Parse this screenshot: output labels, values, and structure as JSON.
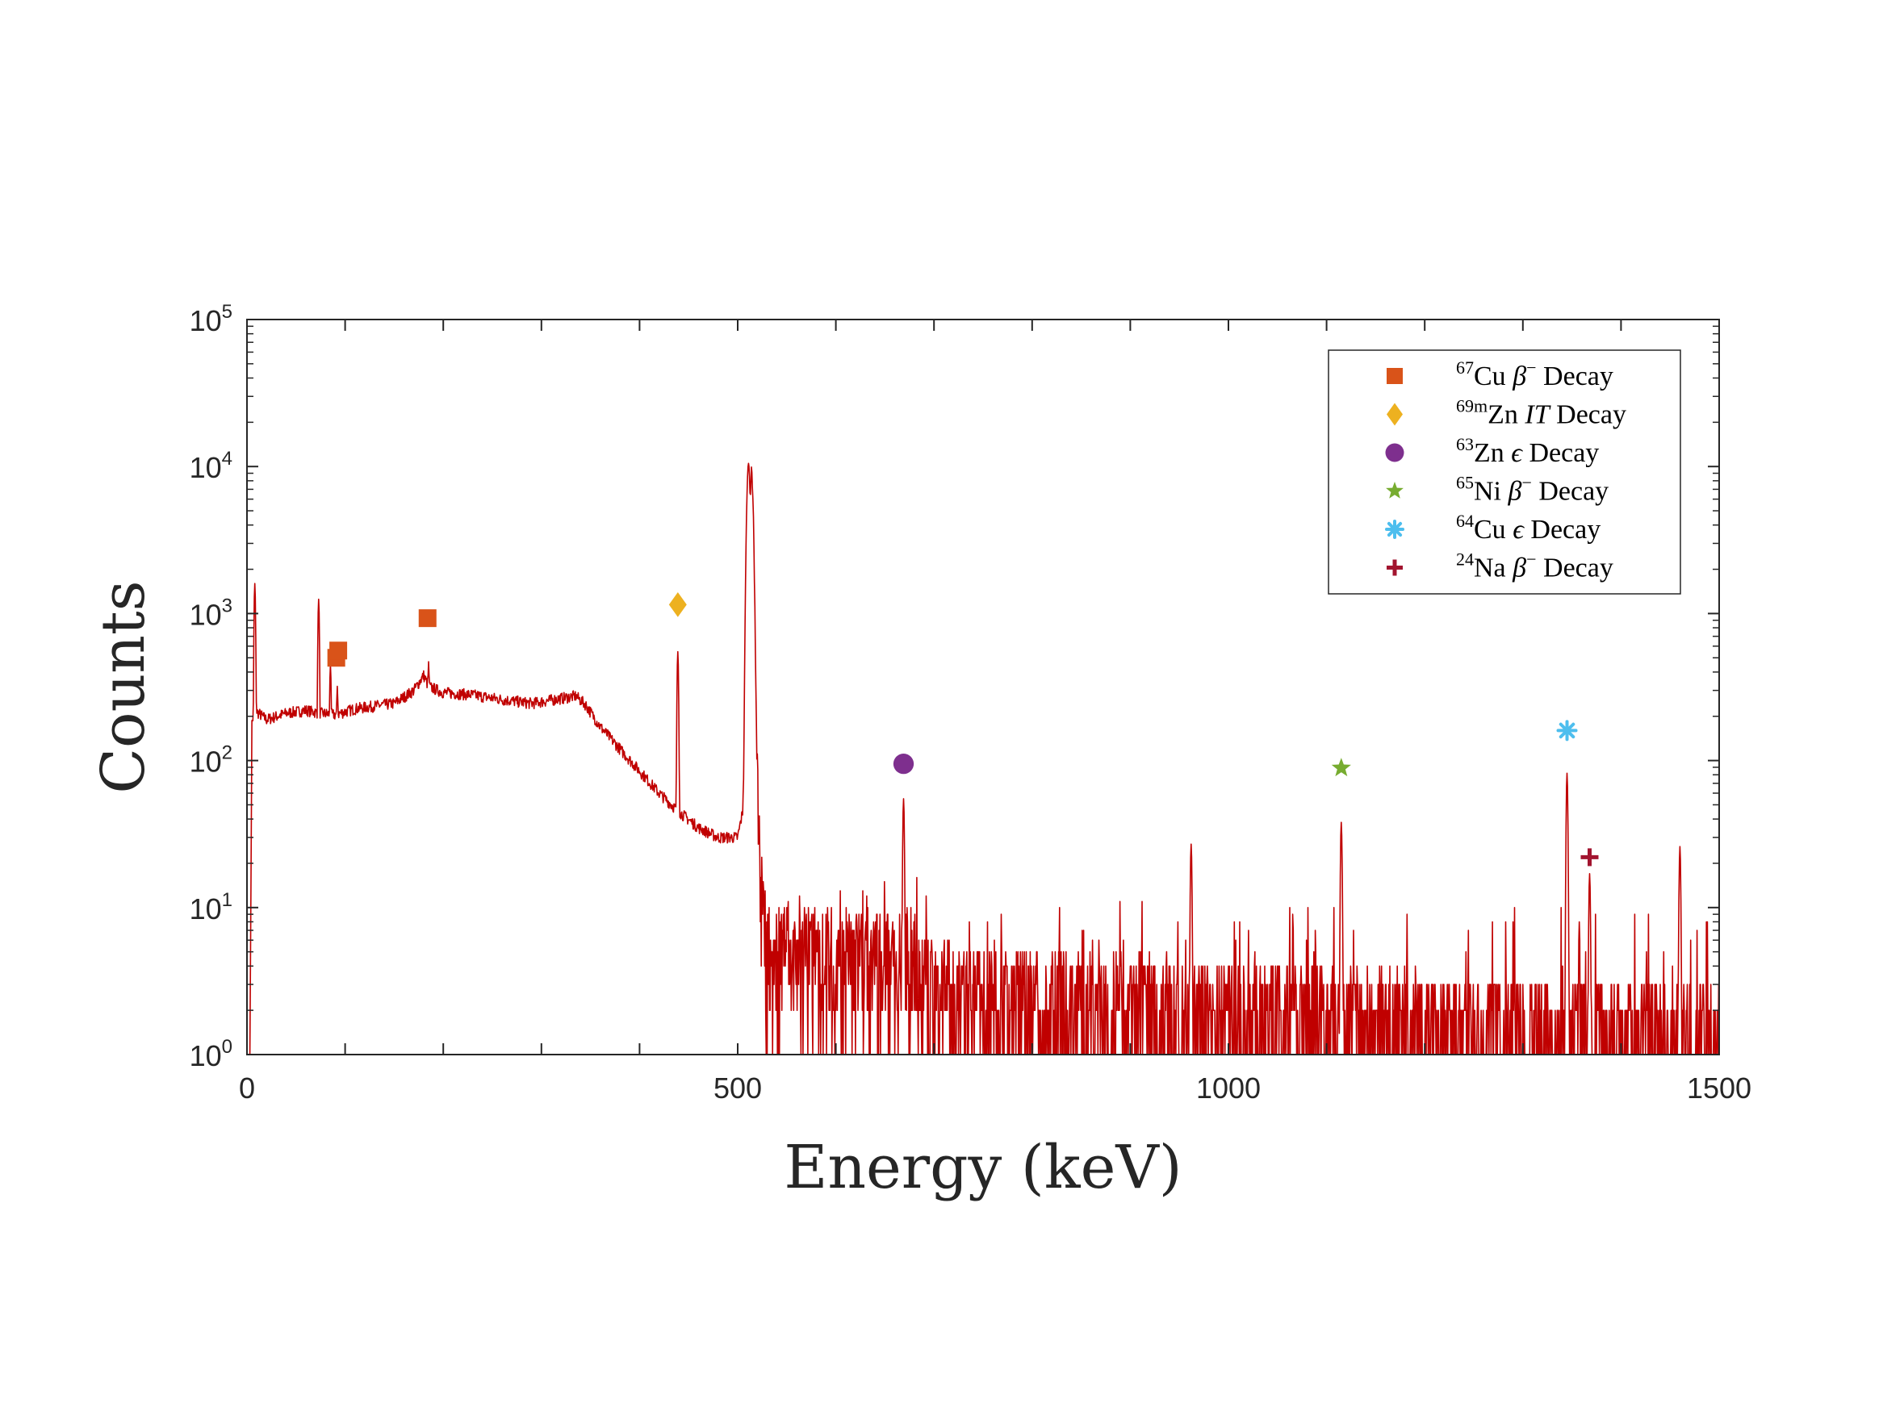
{
  "chart_data": {
    "type": "line",
    "title": "",
    "xlabel": "Energy (keV)",
    "ylabel": "Counts",
    "xlim": [
      0,
      1500
    ],
    "ylim": [
      1,
      100000
    ],
    "yscale": "log",
    "grid": false,
    "legend_position": "top-right",
    "x_ticks": [
      {
        "value": 0,
        "label": "0"
      },
      {
        "value": 500,
        "label": "500"
      },
      {
        "value": 1000,
        "label": "1000"
      },
      {
        "value": 1500,
        "label": "1500"
      }
    ],
    "y_ticks": [
      {
        "value": 1,
        "base": "10",
        "exp": "0"
      },
      {
        "value": 10,
        "base": "10",
        "exp": "1"
      },
      {
        "value": 100,
        "base": "10",
        "exp": "2"
      },
      {
        "value": 1000,
        "base": "10",
        "exp": "3"
      },
      {
        "value": 10000,
        "base": "10",
        "exp": "4"
      },
      {
        "value": 100000,
        "base": "10",
        "exp": "5"
      }
    ],
    "spectrum": {
      "color": "#C00000",
      "continuum": [
        [
          3,
          1
        ],
        [
          5,
          180
        ],
        [
          8,
          220
        ],
        [
          20,
          190
        ],
        [
          40,
          210
        ],
        [
          60,
          220
        ],
        [
          75,
          210
        ],
        [
          90,
          205
        ],
        [
          110,
          225
        ],
        [
          130,
          235
        ],
        [
          150,
          245
        ],
        [
          170,
          300
        ],
        [
          180,
          380
        ],
        [
          185,
          320
        ],
        [
          200,
          290
        ],
        [
          230,
          280
        ],
        [
          260,
          260
        ],
        [
          290,
          245
        ],
        [
          320,
          265
        ],
        [
          335,
          275
        ],
        [
          345,
          240
        ],
        [
          360,
          170
        ],
        [
          380,
          120
        ],
        [
          400,
          85
        ],
        [
          420,
          60
        ],
        [
          440,
          45
        ],
        [
          460,
          35
        ],
        [
          480,
          30
        ],
        [
          500,
          30
        ],
        [
          505,
          45
        ],
        [
          510,
          800
        ],
        [
          512,
          5000
        ],
        [
          514,
          10000
        ],
        [
          516,
          5000
        ],
        [
          518,
          600
        ],
        [
          520,
          60
        ],
        [
          525,
          12
        ],
        [
          530,
          5
        ],
        [
          600,
          5
        ],
        [
          680,
          5
        ],
        [
          690,
          3
        ],
        [
          800,
          2.5
        ],
        [
          1000,
          2.2
        ],
        [
          1200,
          1.8
        ],
        [
          1500,
          1.5
        ]
      ],
      "peaks": [
        {
          "energy": 8,
          "counts": 1600
        },
        {
          "energy": 73,
          "counts": 1250
        },
        {
          "energy": 85,
          "counts": 450
        },
        {
          "energy": 92,
          "counts": 320
        },
        {
          "energy": 185,
          "counts": 470
        },
        {
          "energy": 439,
          "counts": 550
        },
        {
          "energy": 511,
          "counts": 10500
        },
        {
          "energy": 669,
          "counts": 55
        },
        {
          "energy": 962,
          "counts": 27
        },
        {
          "energy": 1115,
          "counts": 38
        },
        {
          "energy": 1345,
          "counts": 82
        },
        {
          "energy": 1368,
          "counts": 17
        },
        {
          "energy": 1460,
          "counts": 26
        }
      ]
    },
    "series": [
      {
        "name": "67Cu β− Decay",
        "marker": "square",
        "color": "#D95319",
        "points": [
          {
            "x": 91,
            "y": 500
          },
          {
            "x": 93,
            "y": 560
          },
          {
            "x": 184,
            "y": 930
          }
        ]
      },
      {
        "name": "69mZn IT Decay",
        "marker": "diamond",
        "color": "#EDB120",
        "points": [
          {
            "x": 439,
            "y": 1150
          }
        ]
      },
      {
        "name": "63Zn ϵ Decay",
        "marker": "circle",
        "color": "#7E2F8E",
        "points": [
          {
            "x": 669,
            "y": 95
          }
        ]
      },
      {
        "name": "65Ni β− Decay",
        "marker": "star",
        "color": "#77AC30",
        "points": [
          {
            "x": 1115,
            "y": 89
          }
        ]
      },
      {
        "name": "64Cu ϵ Decay",
        "marker": "asterisk",
        "color": "#4DBEEE",
        "points": [
          {
            "x": 1345,
            "y": 160
          }
        ]
      },
      {
        "name": "24Na β− Decay",
        "marker": "plus",
        "color": "#A2142F",
        "points": [
          {
            "x": 1368,
            "y": 22
          }
        ]
      }
    ],
    "legend": [
      {
        "mass": "67",
        "element": "Cu",
        "mode": "β",
        "mode_sup": "−",
        "text": "Decay",
        "marker": "square",
        "color": "#D95319"
      },
      {
        "mass": "69m",
        "element": "Zn",
        "mode": "IT",
        "mode_sup": "",
        "text": "Decay",
        "marker": "diamond",
        "color": "#EDB120"
      },
      {
        "mass": "63",
        "element": "Zn",
        "mode": "ϵ",
        "mode_sup": "",
        "text": "Decay",
        "marker": "circle",
        "color": "#7E2F8E"
      },
      {
        "mass": "65",
        "element": "Ni",
        "mode": "β",
        "mode_sup": "−",
        "text": "Decay",
        "marker": "star",
        "color": "#77AC30"
      },
      {
        "mass": "64",
        "element": "Cu",
        "mode": "ϵ",
        "mode_sup": "",
        "text": "Decay",
        "marker": "asterisk",
        "color": "#4DBEEE"
      },
      {
        "mass": "24",
        "element": "Na",
        "mode": "β",
        "mode_sup": "−",
        "text": "Decay",
        "marker": "plus",
        "color": "#A2142F"
      }
    ]
  }
}
